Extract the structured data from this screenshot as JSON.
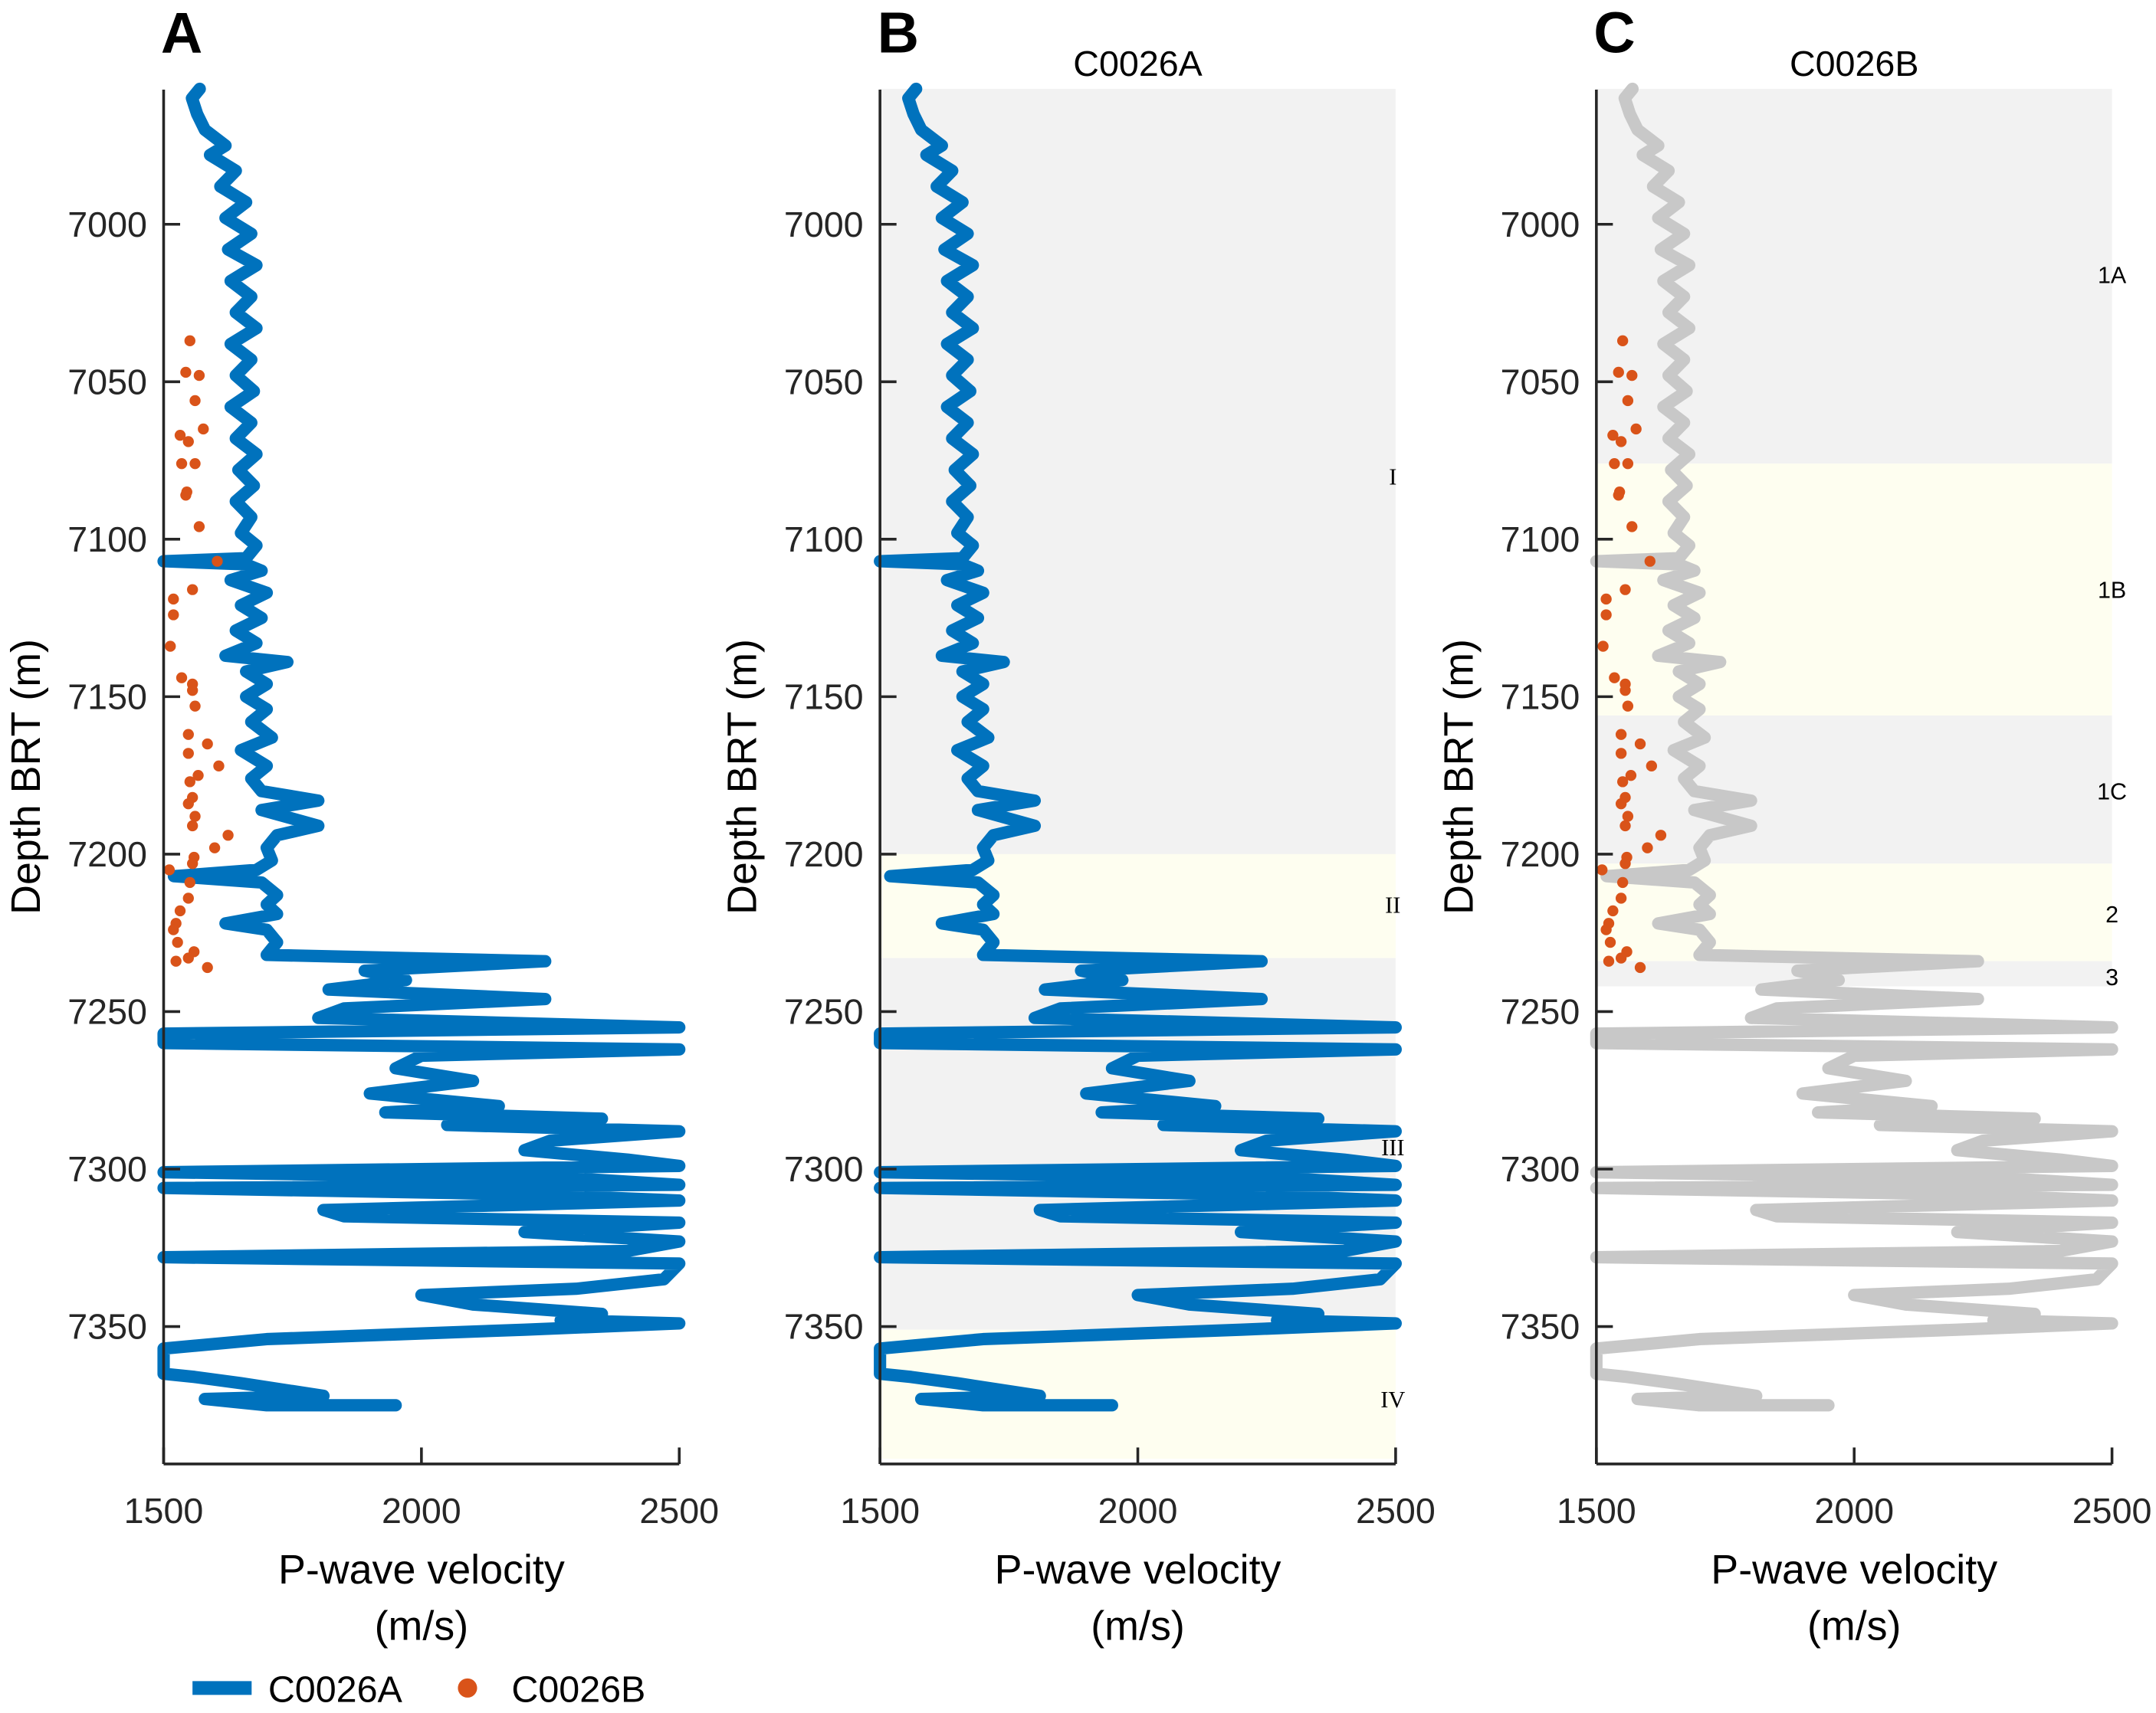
{
  "chart_data": [
    {
      "type": "line",
      "panel_letter": "A",
      "title": "",
      "xlabel": "P-wave velocity",
      "xlabel_unit": "(m/s)",
      "ylabel": "Depth BRT (m)",
      "xlim": [
        1500,
        2500
      ],
      "ylim": [
        6957,
        7394
      ],
      "y_reversed": true,
      "xticks": [
        "1500",
        "2000",
        "2500"
      ],
      "yticks": [
        "7000",
        "7050",
        "7100",
        "7150",
        "7200",
        "7250",
        "7300",
        "7350"
      ],
      "series_refs": [
        "C0026A",
        "C0026B"
      ],
      "curve_color": "#0072BD",
      "zones": []
    },
    {
      "type": "line",
      "panel_letter": "B",
      "title": "C0026A",
      "xlabel": "P-wave velocity",
      "xlabel_unit": "(m/s)",
      "ylabel": "Depth BRT (m)",
      "xlim": [
        1500,
        2500
      ],
      "ylim": [
        6957,
        7394
      ],
      "y_reversed": true,
      "xticks": [
        "1500",
        "2000",
        "2500"
      ],
      "yticks": [
        "7000",
        "7050",
        "7100",
        "7150",
        "7200",
        "7250",
        "7300",
        "7350"
      ],
      "series_refs": [
        "C0026A"
      ],
      "curve_color": "#0072BD",
      "zones": [
        {
          "label": "I",
          "top": 6957,
          "bottom": 7200,
          "color": "#f2f2f2",
          "label_depth": 7080
        },
        {
          "label": "II",
          "top": 7200,
          "bottom": 7233,
          "color": "#fefef0",
          "label_depth": 7216
        },
        {
          "label": "III",
          "top": 7233,
          "bottom": 7351,
          "color": "#f2f2f2",
          "label_depth": 7293
        },
        {
          "label": "IV",
          "top": 7351,
          "bottom": 7392,
          "color": "#fefef0",
          "label_depth": 7373
        }
      ]
    },
    {
      "type": "line",
      "panel_letter": "C",
      "title": "C0026B",
      "xlabel": "P-wave velocity",
      "xlabel_unit": "(m/s)",
      "ylabel": "Depth BRT (m)",
      "xlim": [
        1500,
        2500
      ],
      "ylim": [
        6957,
        7394
      ],
      "y_reversed": true,
      "xticks": [
        "1500",
        "2000",
        "2500"
      ],
      "yticks": [
        "7000",
        "7050",
        "7100",
        "7150",
        "7200",
        "7250",
        "7300",
        "7350"
      ],
      "series_refs": [
        "C0026A",
        "C0026B"
      ],
      "curve_color": "#c8c8c8",
      "zones": [
        {
          "label": "1A",
          "top": 6957,
          "bottom": 7076,
          "color": "#f2f2f2",
          "label_depth": 7016
        },
        {
          "label": "1B",
          "top": 7076,
          "bottom": 7156,
          "color": "#fefef0",
          "label_depth": 7116
        },
        {
          "label": "1C",
          "top": 7156,
          "bottom": 7203,
          "color": "#f2f2f2",
          "label_depth": 7180
        },
        {
          "label": "2",
          "top": 7203,
          "bottom": 7234,
          "color": "#fefef0",
          "label_depth": 7219
        },
        {
          "label": "3",
          "top": 7234,
          "bottom": 7242,
          "color": "#f2f2f2",
          "label_depth": 7239
        }
      ]
    }
  ],
  "series": {
    "C0026A": {
      "name": "C0026A",
      "style": "line",
      "color": "#0072BD",
      "points": [
        [
          6957,
          1570
        ],
        [
          6960,
          1555
        ],
        [
          6965,
          1565
        ],
        [
          6970,
          1580
        ],
        [
          6975,
          1620
        ],
        [
          6978,
          1590
        ],
        [
          6983,
          1640
        ],
        [
          6988,
          1610
        ],
        [
          6993,
          1660
        ],
        [
          6998,
          1620
        ],
        [
          7003,
          1670
        ],
        [
          7008,
          1625
        ],
        [
          7013,
          1680
        ],
        [
          7018,
          1630
        ],
        [
          7023,
          1670
        ],
        [
          7028,
          1640
        ],
        [
          7033,
          1680
        ],
        [
          7038,
          1630
        ],
        [
          7043,
          1670
        ],
        [
          7048,
          1640
        ],
        [
          7053,
          1675
        ],
        [
          7058,
          1630
        ],
        [
          7063,
          1670
        ],
        [
          7068,
          1640
        ],
        [
          7073,
          1680
        ],
        [
          7078,
          1645
        ],
        [
          7083,
          1675
        ],
        [
          7088,
          1640
        ],
        [
          7093,
          1670
        ],
        [
          7098,
          1650
        ],
        [
          7102,
          1680
        ],
        [
          7106,
          1660
        ],
        [
          7107,
          1500
        ],
        [
          7108,
          1660
        ],
        [
          7110,
          1690
        ],
        [
          7113,
          1630
        ],
        [
          7117,
          1700
        ],
        [
          7121,
          1650
        ],
        [
          7125,
          1690
        ],
        [
          7129,
          1640
        ],
        [
          7133,
          1680
        ],
        [
          7137,
          1620
        ],
        [
          7139,
          1740
        ],
        [
          7142,
          1660
        ],
        [
          7146,
          1700
        ],
        [
          7150,
          1660
        ],
        [
          7154,
          1700
        ],
        [
          7158,
          1670
        ],
        [
          7163,
          1710
        ],
        [
          7167,
          1650
        ],
        [
          7172,
          1700
        ],
        [
          7176,
          1670
        ],
        [
          7180,
          1690
        ],
        [
          7183,
          1800
        ],
        [
          7186,
          1690
        ],
        [
          7191,
          1800
        ],
        [
          7194,
          1720
        ],
        [
          7198,
          1700
        ],
        [
          7202,
          1710
        ],
        [
          7205,
          1680
        ],
        [
          7207,
          1520
        ],
        [
          7209,
          1690
        ],
        [
          7213,
          1720
        ],
        [
          7216,
          1700
        ],
        [
          7219,
          1720
        ],
        [
          7222,
          1620
        ],
        [
          7224,
          1700
        ],
        [
          7228,
          1720
        ],
        [
          7232,
          1700
        ],
        [
          7234,
          2240
        ],
        [
          7237,
          1890
        ],
        [
          7240,
          1970
        ],
        [
          7243,
          1820
        ],
        [
          7246,
          2240
        ],
        [
          7249,
          1850
        ],
        [
          7252,
          1800
        ],
        [
          7255,
          2500
        ],
        [
          7257,
          1500
        ],
        [
          7260,
          1500
        ],
        [
          7262,
          2500
        ],
        [
          7264,
          2000
        ],
        [
          7268,
          1950
        ],
        [
          7272,
          2100
        ],
        [
          7276,
          1900
        ],
        [
          7280,
          2150
        ],
        [
          7282,
          1930
        ],
        [
          7284,
          2350
        ],
        [
          7286,
          2050
        ],
        [
          7288,
          2500
        ],
        [
          7291,
          2250
        ],
        [
          7294,
          2200
        ],
        [
          7297,
          2400
        ],
        [
          7299,
          2500
        ],
        [
          7301,
          1500
        ],
        [
          7303,
          2300
        ],
        [
          7305,
          2500
        ],
        [
          7306,
          1500
        ],
        [
          7308,
          2200
        ],
        [
          7310,
          2500
        ],
        [
          7313,
          1810
        ],
        [
          7315,
          1850
        ],
        [
          7317,
          2500
        ],
        [
          7320,
          2200
        ],
        [
          7323,
          2500
        ],
        [
          7326,
          2400
        ],
        [
          7328,
          1500
        ],
        [
          7330,
          2500
        ],
        [
          7335,
          2470
        ],
        [
          7338,
          2300
        ],
        [
          7340,
          2000
        ],
        [
          7343,
          2100
        ],
        [
          7346,
          2350
        ],
        [
          7348,
          2270
        ],
        [
          7349,
          2500
        ],
        [
          7351,
          2200
        ],
        [
          7354,
          1700
        ],
        [
          7357,
          1500
        ],
        [
          7360,
          1500
        ],
        [
          7365,
          1500
        ],
        [
          7366,
          1560
        ],
        [
          7368,
          1650
        ],
        [
          7372,
          1810
        ],
        [
          7373,
          1580
        ],
        [
          7375,
          1700
        ],
        [
          7375,
          1950
        ]
      ]
    },
    "C0026B": {
      "name": "C0026B",
      "style": "scatter",
      "color": "#D95319",
      "points": [
        [
          7037,
          1551
        ],
        [
          7047,
          1543
        ],
        [
          7048,
          1569
        ],
        [
          7056,
          1561
        ],
        [
          7065,
          1577
        ],
        [
          7067,
          1532
        ],
        [
          7069,
          1548
        ],
        [
          7076,
          1535
        ],
        [
          7076,
          1561
        ],
        [
          7085,
          1545
        ],
        [
          7086,
          1543
        ],
        [
          7096,
          1569
        ],
        [
          7107,
          1604
        ],
        [
          7116,
          1556
        ],
        [
          7119,
          1519
        ],
        [
          7124,
          1519
        ],
        [
          7134,
          1513
        ],
        [
          7144,
          1535
        ],
        [
          7146,
          1556
        ],
        [
          7148,
          1556
        ],
        [
          7153,
          1561
        ],
        [
          7162,
          1548
        ],
        [
          7165,
          1585
        ],
        [
          7168,
          1548
        ],
        [
          7172,
          1607
        ],
        [
          7175,
          1567
        ],
        [
          7177,
          1551
        ],
        [
          7182,
          1556
        ],
        [
          7184,
          1548
        ],
        [
          7188,
          1561
        ],
        [
          7191,
          1556
        ],
        [
          7194,
          1625
        ],
        [
          7198,
          1599
        ],
        [
          7201,
          1559
        ],
        [
          7203,
          1556
        ],
        [
          7205,
          1511
        ],
        [
          7209,
          1551
        ],
        [
          7214,
          1548
        ],
        [
          7218,
          1532
        ],
        [
          7222,
          1524
        ],
        [
          7224,
          1519
        ],
        [
          7228,
          1527
        ],
        [
          7231,
          1559
        ],
        [
          7233,
          1548
        ],
        [
          7234,
          1524
        ],
        [
          7236,
          1585
        ]
      ]
    }
  },
  "legend": {
    "placement": "bottom-left",
    "items": [
      {
        "label": "C0026A",
        "color": "#0072BD",
        "marker": "line"
      },
      {
        "label": "C0026B",
        "color": "#D95319",
        "marker": "dot"
      }
    ]
  }
}
